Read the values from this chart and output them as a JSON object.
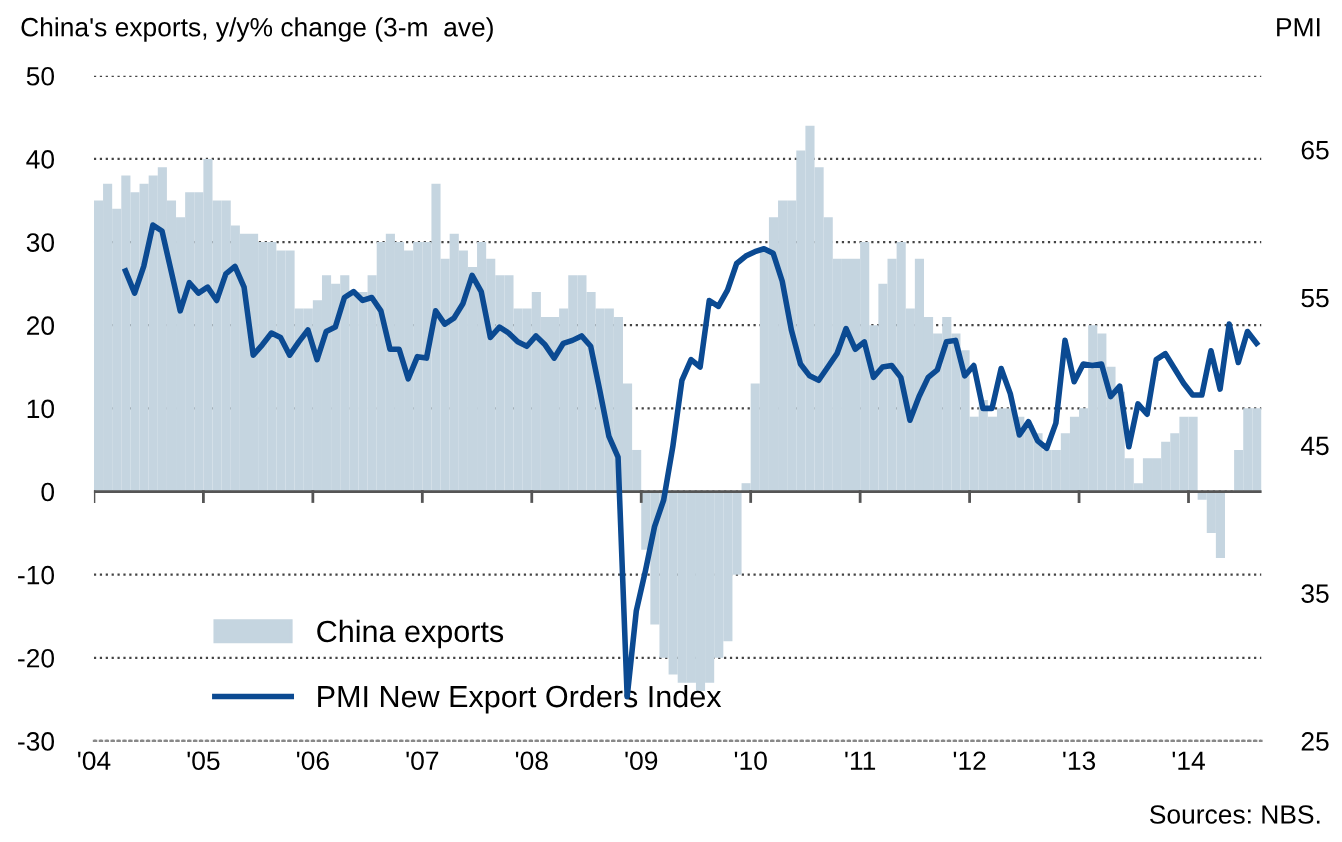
{
  "chart_data": {
    "type": "bar",
    "ylabel": "China's exports, y/y% change (3-m  ave)",
    "y2label": "PMI",
    "x": [
      "2004-01",
      "2004-02",
      "2004-03",
      "2004-04",
      "2004-05",
      "2004-06",
      "2004-07",
      "2004-08",
      "2004-09",
      "2004-10",
      "2004-11",
      "2004-12",
      "2005-01",
      "2005-02",
      "2005-03",
      "2005-04",
      "2005-05",
      "2005-06",
      "2005-07",
      "2005-08",
      "2005-09",
      "2005-10",
      "2005-11",
      "2005-12",
      "2006-01",
      "2006-02",
      "2006-03",
      "2006-04",
      "2006-05",
      "2006-06",
      "2006-07",
      "2006-08",
      "2006-09",
      "2006-10",
      "2006-11",
      "2006-12",
      "2007-01",
      "2007-02",
      "2007-03",
      "2007-04",
      "2007-05",
      "2007-06",
      "2007-07",
      "2007-08",
      "2007-09",
      "2007-10",
      "2007-11",
      "2007-12",
      "2008-01",
      "2008-02",
      "2008-03",
      "2008-04",
      "2008-05",
      "2008-06",
      "2008-07",
      "2008-08",
      "2008-09",
      "2008-10",
      "2008-11",
      "2008-12",
      "2009-01",
      "2009-02",
      "2009-03",
      "2009-04",
      "2009-05",
      "2009-06",
      "2009-07",
      "2009-08",
      "2009-09",
      "2009-10",
      "2009-11",
      "2009-12",
      "2010-01",
      "2010-02",
      "2010-03",
      "2010-04",
      "2010-05",
      "2010-06",
      "2010-07",
      "2010-08",
      "2010-09",
      "2010-10",
      "2010-11",
      "2010-12",
      "2011-01",
      "2011-02",
      "2011-03",
      "2011-04",
      "2011-05",
      "2011-06",
      "2011-07",
      "2011-08",
      "2011-09",
      "2011-10",
      "2011-11",
      "2011-12",
      "2012-01",
      "2012-02",
      "2012-03",
      "2012-04",
      "2012-05",
      "2012-06",
      "2012-07",
      "2012-08",
      "2012-09",
      "2012-10",
      "2012-11",
      "2012-12",
      "2013-01",
      "2013-02",
      "2013-03",
      "2013-04",
      "2013-05",
      "2013-06",
      "2013-07",
      "2013-08",
      "2013-09",
      "2013-10",
      "2013-11",
      "2013-12",
      "2014-01",
      "2014-02",
      "2014-03",
      "2014-04",
      "2014-05",
      "2014-06",
      "2014-07",
      "2014-08"
    ],
    "series": [
      {
        "name": "China exports",
        "color": "#c5d5e0",
        "values": [
          35,
          37,
          34,
          38,
          36,
          37,
          38,
          39,
          35,
          33,
          36,
          36,
          40,
          35,
          35,
          32,
          31,
          31,
          30,
          30,
          29,
          29,
          22,
          22,
          23,
          26,
          25,
          26,
          24,
          24,
          26,
          30,
          31,
          30,
          29,
          30,
          30,
          37,
          28,
          31,
          29,
          27,
          30,
          28,
          26,
          26,
          22,
          22,
          24,
          21,
          21,
          22,
          26,
          26,
          24,
          22,
          22,
          21,
          13,
          5,
          -7,
          -16,
          -20,
          -22,
          -23,
          -23,
          -24,
          -23,
          -20,
          -18,
          -10,
          1,
          13,
          29,
          33,
          35,
          35,
          41,
          44,
          39,
          33,
          28,
          28,
          28,
          30,
          20,
          25,
          28,
          30,
          22,
          28,
          21,
          19,
          21,
          19,
          17,
          9,
          11,
          9,
          10,
          10,
          9,
          8,
          7,
          5,
          5,
          7,
          9,
          10,
          20,
          19,
          15,
          12,
          4,
          1,
          4,
          4,
          6,
          7,
          9,
          9,
          -1,
          -5,
          -8,
          0,
          5,
          10,
          10
        ]
      },
      {
        "name": "PMI New Export Orders Index",
        "type": "line",
        "axis": "y2",
        "color": "#0b4a92",
        "x": [
          "2004-04-15",
          "2004-05-15",
          "2004-06-15",
          "2004-07-15",
          "2004-08-15",
          "2004-09-15",
          "2004-10-15",
          "2004-11-15",
          "2004-12-15",
          "2005-01-15",
          "2005-02-15",
          "2005-03-15",
          "2005-04-15",
          "2005-05-15",
          "2005-06-15",
          "2005-07-15",
          "2005-08-15",
          "2005-09-15",
          "2005-10-15",
          "2005-11-15",
          "2005-12-15",
          "2006-01-15",
          "2006-02-15",
          "2006-03-15",
          "2006-04-15",
          "2006-05-15",
          "2006-06-15",
          "2006-07-15",
          "2006-08-15",
          "2006-09-15",
          "2006-10-15",
          "2006-11-15",
          "2006-12-15",
          "2007-01-15",
          "2007-02-15",
          "2007-03-15",
          "2007-04-15",
          "2007-05-15",
          "2007-06-15",
          "2007-07-15",
          "2007-08-15",
          "2007-09-15",
          "2007-10-15",
          "2007-11-15",
          "2007-12-15",
          "2008-01-15",
          "2008-02-15",
          "2008-03-15",
          "2008-04-15",
          "2008-05-15",
          "2008-06-15",
          "2008-07-15",
          "2008-08-15",
          "2008-09-15",
          "2008-10-15",
          "2008-11-15",
          "2008-12-15",
          "2009-01-15",
          "2009-02-15",
          "2009-03-15",
          "2009-04-15",
          "2009-05-15",
          "2009-06-15",
          "2009-07-15",
          "2009-08-15",
          "2009-09-15",
          "2009-10-15",
          "2009-11-15",
          "2009-12-15",
          "2010-01-15",
          "2010-02-15",
          "2010-03-15",
          "2010-04-15",
          "2010-05-15",
          "2010-06-15",
          "2010-07-15",
          "2010-08-15",
          "2010-09-15",
          "2010-10-15",
          "2010-11-15",
          "2010-12-15",
          "2011-01-15",
          "2011-02-15",
          "2011-03-15",
          "2011-04-15",
          "2011-05-15",
          "2011-06-15",
          "2011-07-15",
          "2011-08-15",
          "2011-09-15",
          "2011-10-15",
          "2011-11-15",
          "2011-12-15",
          "2012-01-15",
          "2012-02-15",
          "2012-03-15",
          "2012-04-15",
          "2012-05-15",
          "2012-06-15",
          "2012-07-15",
          "2012-08-15",
          "2012-09-15",
          "2012-10-15",
          "2012-11-15",
          "2012-12-15",
          "2013-01-15",
          "2013-02-15",
          "2013-03-15",
          "2013-04-15",
          "2013-05-15",
          "2013-06-15",
          "2013-07-15",
          "2013-08-15",
          "2013-09-15",
          "2013-10-15",
          "2013-11-15",
          "2013-12-15",
          "2014-01-15",
          "2014-02-15",
          "2014-03-15",
          "2014-04-15",
          "2014-05-15",
          "2014-06-15",
          "2014-07-15",
          "2014-08-15"
        ],
        "values": [
          56.8,
          55.3,
          57.1,
          59.9,
          59.5,
          56.8,
          54.1,
          56.0,
          55.3,
          55.7,
          54.8,
          56.6,
          57.1,
          55.7,
          51.1,
          51.8,
          52.6,
          52.3,
          51.1,
          52.0,
          52.8,
          50.8,
          52.7,
          53.0,
          55.0,
          55.4,
          54.8,
          55.0,
          54.1,
          51.5,
          51.5,
          49.5,
          51.0,
          50.9,
          54.1,
          53.2,
          53.6,
          54.6,
          56.5,
          55.4,
          52.3,
          53.0,
          52.6,
          52.0,
          51.7,
          52.4,
          51.8,
          50.9,
          51.9,
          52.1,
          52.4,
          51.7,
          48.7,
          45.6,
          44.2,
          28.0,
          33.8,
          36.5,
          39.5,
          41.3,
          44.9,
          49.4,
          50.8,
          50.3,
          54.8,
          54.4,
          55.5,
          57.3,
          57.8,
          58.1,
          58.3,
          58.0,
          56.1,
          52.8,
          50.5,
          49.7,
          49.4,
          50.3,
          51.2,
          52.9,
          51.5,
          52.0,
          49.6,
          50.3,
          50.4,
          49.6,
          46.7,
          48.3,
          49.6,
          50.1,
          52.0,
          52.1,
          49.7,
          50.4,
          47.5,
          47.5,
          50.2,
          48.5,
          45.7,
          46.6,
          45.3,
          44.8,
          46.5,
          52.1,
          49.3,
          50.5,
          50.4,
          50.5,
          48.3,
          49.0,
          44.9,
          47.8,
          47.1,
          50.8,
          51.2,
          50.2,
          49.2,
          48.4,
          48.4,
          51.4,
          48.8,
          53.2,
          50.6,
          52.7,
          51.9
        ]
      }
    ],
    "xlim": [
      "2004-01",
      "2014-09"
    ],
    "xticks": [
      {
        "value": "2004",
        "label": "'04"
      },
      {
        "value": "2005",
        "label": "'05"
      },
      {
        "value": "2006",
        "label": "'06"
      },
      {
        "value": "2007",
        "label": "'07"
      },
      {
        "value": "2008",
        "label": "'08"
      },
      {
        "value": "2009",
        "label": "'09"
      },
      {
        "value": "2010",
        "label": "'10"
      },
      {
        "value": "2011",
        "label": "'11"
      },
      {
        "value": "2012",
        "label": "'12"
      },
      {
        "value": "2013",
        "label": "'13"
      },
      {
        "value": "2014",
        "label": "'14"
      }
    ],
    "ylim": [
      -30,
      50
    ],
    "yticks": [
      -30,
      -20,
      -10,
      0,
      10,
      20,
      30,
      40,
      50
    ],
    "y2lim": [
      25,
      70
    ],
    "y2ticks": [
      25,
      35,
      45,
      55,
      65
    ],
    "grid": "y",
    "legend": "bottom left",
    "annotations": [
      "Sources: NBS."
    ]
  }
}
